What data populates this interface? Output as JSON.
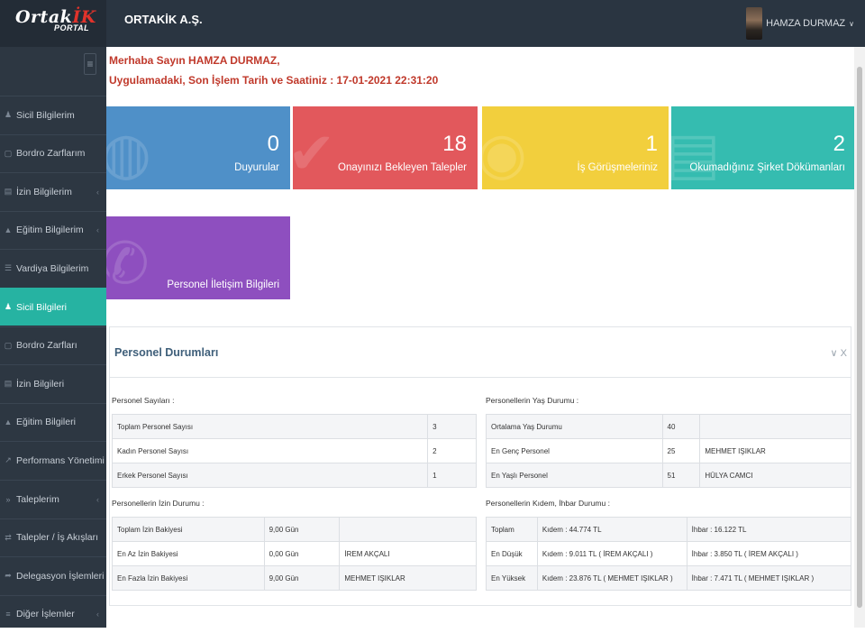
{
  "logo": {
    "main": "Ortak",
    "accent": "İK",
    "sub": "PORTAL"
  },
  "header": {
    "company": "ORTAKİK A.Ş.",
    "user_name": "HAMZA DURMAZ",
    "caret": "∨"
  },
  "sidebar": {
    "toggle_icon": "≡",
    "items": [
      {
        "label": "Sicil Bilgilerim",
        "icon": "person-icon",
        "glyph": "♟",
        "chevron": false,
        "active": false
      },
      {
        "label": "Bordro Zarflarım",
        "icon": "envelope-icon",
        "glyph": "▢",
        "chevron": false,
        "active": false
      },
      {
        "label": "İzin Bilgilerim",
        "icon": "suitcase-icon",
        "glyph": "▤",
        "chevron": true,
        "active": false
      },
      {
        "label": "Eğitim Bilgilerim",
        "icon": "graduation-icon",
        "glyph": "▲",
        "chevron": true,
        "active": false
      },
      {
        "label": "Vardiya Bilgilerim",
        "icon": "sliders-icon",
        "glyph": "☰",
        "chevron": false,
        "active": false
      },
      {
        "label": "Sicil Bilgileri",
        "icon": "person-icon",
        "glyph": "♟",
        "chevron": false,
        "active": true
      },
      {
        "label": "Bordro Zarfları",
        "icon": "envelope-icon",
        "glyph": "▢",
        "chevron": false,
        "active": false
      },
      {
        "label": "İzin Bilgileri",
        "icon": "suitcase-icon",
        "glyph": "▤",
        "chevron": false,
        "active": false
      },
      {
        "label": "Eğitim Bilgileri",
        "icon": "graduation-icon",
        "glyph": "▲",
        "chevron": false,
        "active": false
      },
      {
        "label": "Performans Yönetimi",
        "icon": "chart-icon",
        "glyph": "↗",
        "chevron": true,
        "active": false
      },
      {
        "label": "Taleplerim",
        "icon": "forward-icon",
        "glyph": "»",
        "chevron": true,
        "active": false
      },
      {
        "label": "Talepler / İş Akışları",
        "icon": "flow-icon",
        "glyph": "⇄",
        "chevron": false,
        "active": false
      },
      {
        "label": "Delegasyon İşlemleri",
        "icon": "share-icon",
        "glyph": "➦",
        "chevron": true,
        "active": false
      },
      {
        "label": "Diğer İşlemler",
        "icon": "menu-icon",
        "glyph": "≡",
        "chevron": true,
        "active": false
      }
    ]
  },
  "greeting": {
    "line1": "Merhaba Sayın HAMZA DURMAZ,",
    "line2": "Uygulamadaki, Son İşlem Tarih ve Saatiniz : 17-01-2021 22:31:20"
  },
  "tiles": [
    {
      "number": "0",
      "label": "Duyurular",
      "color": "#4f90c8",
      "icon": "globe-icon",
      "glyph": "◍"
    },
    {
      "number": "18",
      "label": "Onayınızı Bekleyen Talepler",
      "color": "#e2585c",
      "icon": "check-icon",
      "glyph": "✔"
    },
    {
      "number": "1",
      "label": "İş Görüşmeleriniz",
      "color": "#f2cf3d",
      "icon": "chat-icon",
      "glyph": "◉"
    },
    {
      "number": "2",
      "label": "Okumadığınız Şirket Dökümanları",
      "color": "#35bcb0",
      "icon": "document-icon",
      "glyph": "▤"
    },
    {
      "number": "",
      "label": "Personel İletişim Bilgileri",
      "color": "#8e4fbf",
      "icon": "phone-icon",
      "glyph": "✆"
    }
  ],
  "panel": {
    "title": "Personel Durumları",
    "tools": "∨ X",
    "counts": {
      "title": "Personel Sayıları :",
      "rows": [
        [
          "Toplam Personel Sayısı",
          "3"
        ],
        [
          "Kadın Personel Sayısı",
          "2"
        ],
        [
          "Erkek Personel Sayısı",
          "1"
        ]
      ]
    },
    "ages": {
      "title": "Personellerin Yaş Durumu :",
      "rows": [
        [
          "Ortalama Yaş Durumu",
          "40",
          ""
        ],
        [
          "En Genç Personel",
          "25",
          "MEHMET IŞIKLAR"
        ],
        [
          "En Yaşlı Personel",
          "51",
          "HÜLYA CAMCI"
        ]
      ]
    },
    "leave": {
      "title": "Personellerin İzin Durumu :",
      "rows": [
        [
          "Toplam İzin Bakiyesi",
          "9,00 Gün",
          ""
        ],
        [
          "En Az İzin Bakiyesi",
          "0,00 Gün",
          "İREM AKÇALI"
        ],
        [
          "En Fazla İzin Bakiyesi",
          "9,00 Gün",
          "MEHMET IŞIKLAR"
        ]
      ]
    },
    "severance": {
      "title": "Personellerin Kıdem, İhbar Durumu :",
      "rows": [
        [
          "Toplam",
          "Kıdem : 44.774 TL",
          "İhbar : 16.122 TL"
        ],
        [
          "En Düşük",
          "Kıdem : 9.011 TL ( İREM AKÇALI )",
          "İhbar : 3.850 TL ( İREM AKÇALI )"
        ],
        [
          "En Yüksek",
          "Kıdem : 23.876 TL ( MEHMET IŞIKLAR )",
          "İhbar : 7.471 TL ( MEHMET IŞIKLAR )"
        ]
      ]
    }
  }
}
